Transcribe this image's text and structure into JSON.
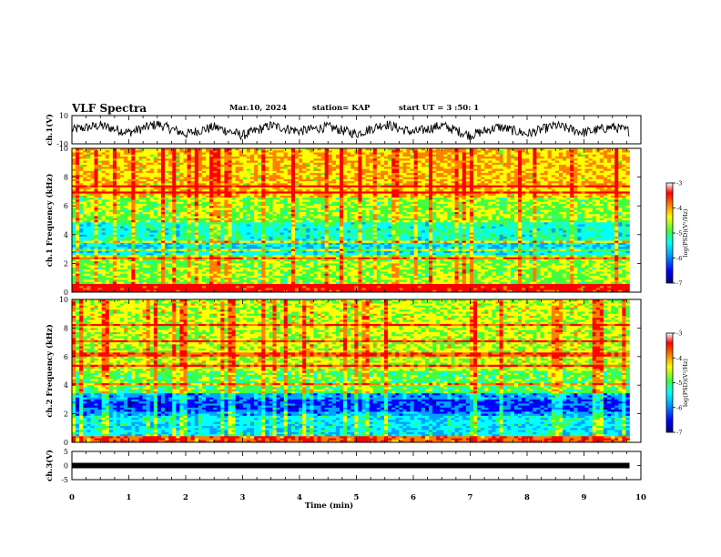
{
  "header": {
    "title": "VLF Spectra",
    "date": "Mar.10, 2024",
    "station": "station= KAP",
    "start": "start  UT =   3  :50: 1"
  },
  "colors": {
    "colormap": [
      "#000080",
      "#0000ff",
      "#00a0ff",
      "#00ffff",
      "#40ff40",
      "#ffff00",
      "#ff8000",
      "#ff0000",
      "#ffffff"
    ],
    "waveform": "#000000",
    "frame": "#000000"
  },
  "chart_data": [
    {
      "type": "line",
      "name": "ch1-waveform",
      "ylabel": "ch.1(V)",
      "ylim": [
        -10,
        10
      ],
      "yticks": [
        "10",
        "-10"
      ],
      "xlim": [
        0,
        10
      ],
      "description_values": "oscillating voltage mostly between -6 and 6 V",
      "x": [
        0,
        0.5,
        1,
        1.5,
        2,
        2.5,
        3,
        3.5,
        4,
        4.5,
        5,
        5.5,
        6,
        6.5,
        7,
        7.5,
        8,
        8.5,
        9,
        9.5,
        9.8
      ],
      "y": [
        0,
        3,
        -2,
        4,
        -3,
        2,
        -4,
        3,
        -1,
        2,
        -3,
        4,
        -2,
        3,
        -4,
        2,
        -3,
        3,
        -2,
        2,
        -1
      ]
    },
    {
      "type": "heatmap",
      "name": "ch1-spectrogram",
      "ylabel": "ch.1 Frequency  (kHz)",
      "ylim": [
        0,
        10
      ],
      "yticks": [
        "0",
        "2",
        "4",
        "6",
        "8",
        "10"
      ],
      "xlim": [
        0,
        10
      ],
      "colorbar": {
        "label": "log(PSD)(V²/Hz)",
        "range": [
          -7,
          -3
        ],
        "ticks": [
          "-3",
          "-4",
          "-5",
          "-6",
          "-7"
        ]
      }
    },
    {
      "type": "heatmap",
      "name": "ch2-spectrogram",
      "ylabel": "ch.2 Frequency  (kHz)",
      "ylim": [
        0,
        10
      ],
      "yticks": [
        "0",
        "2",
        "4",
        "6",
        "8",
        "10"
      ],
      "xlim": [
        0,
        10
      ],
      "colorbar": {
        "label": "log(PSD)(V²/Hz)",
        "range": [
          -7,
          -3
        ],
        "ticks": [
          "-3",
          "-4",
          "-5",
          "-6",
          "-7"
        ]
      }
    },
    {
      "type": "line",
      "name": "ch3-signal",
      "ylabel": "ch.3(V)",
      "ylim": [
        -5,
        5
      ],
      "yticks": [
        "5",
        "0",
        "-5"
      ],
      "xlim": [
        0,
        10
      ],
      "x": [
        0,
        9.8
      ],
      "y": [
        0,
        0
      ],
      "xlabel": "Time  (min)",
      "xticks": [
        "0",
        "1",
        "2",
        "3",
        "4",
        "5",
        "6",
        "7",
        "8",
        "9",
        "10"
      ]
    }
  ]
}
